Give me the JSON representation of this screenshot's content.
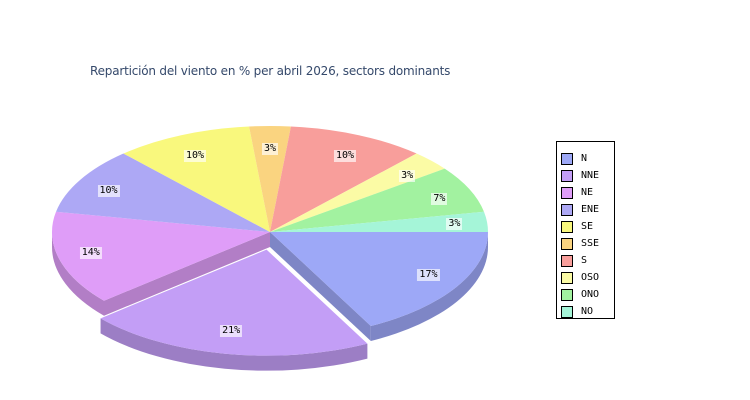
{
  "chart": {
    "title": "Repartición del viento en % per abril 2026, sectors dominants",
    "title_color": "#35496B",
    "background_color": "#FFFFFF"
  },
  "chart_data": {
    "type": "pie",
    "style": "3d-exploded",
    "unit": "%",
    "title": "Repartición del viento en % per abril 2026, sectors dominants",
    "legend_position": "right",
    "start_angle_deg": 0,
    "direction": "clockwise",
    "slices": [
      {
        "name": "N",
        "value": 17,
        "label": "17%",
        "color": "#9DA8F7",
        "exploded": false
      },
      {
        "name": "NNE",
        "value": 21,
        "label": "21%",
        "color": "#C39EF6",
        "exploded": true
      },
      {
        "name": "NE",
        "value": 14,
        "label": "14%",
        "color": "#DF9DF8",
        "exploded": false
      },
      {
        "name": "ENE",
        "value": 10,
        "label": "10%",
        "color": "#ADA8F5",
        "exploded": false
      },
      {
        "name": "SE",
        "value": 10,
        "label": "10%",
        "color": "#F9F87D",
        "exploded": false
      },
      {
        "name": "SSE",
        "value": 3,
        "label": "3%",
        "color": "#FAD480",
        "exploded": false
      },
      {
        "name": "S",
        "value": 10,
        "label": "10%",
        "color": "#F89E9B",
        "exploded": false
      },
      {
        "name": "OSO",
        "value": 3,
        "label": "3%",
        "color": "#FBFBA5",
        "exploded": false
      },
      {
        "name": "ONO",
        "value": 7,
        "label": "7%",
        "color": "#A2F2A0",
        "exploded": false
      },
      {
        "name": "NO",
        "value": 3,
        "label": "3%",
        "color": "#A5F5D8",
        "exploded": false
      }
    ]
  }
}
